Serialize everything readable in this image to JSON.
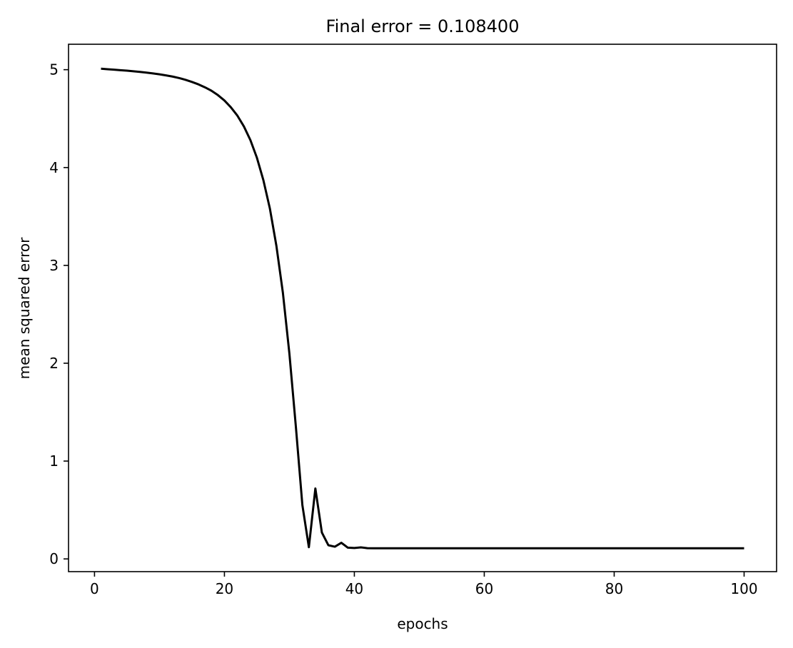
{
  "chart_data": {
    "type": "line",
    "title": "Final error = 0.108400",
    "xlabel": "epochs",
    "ylabel": "mean squared error",
    "xlim": [
      -4,
      105
    ],
    "ylim": [
      -0.13,
      5.26
    ],
    "xticks": [
      0,
      20,
      40,
      60,
      80,
      100
    ],
    "yticks": [
      0,
      1,
      2,
      3,
      4,
      5
    ],
    "grid": false,
    "line_color": "#000000",
    "series": [
      {
        "x": [
          1,
          2,
          3,
          4,
          5,
          6,
          7,
          8,
          9,
          10,
          11,
          12,
          13,
          14,
          15,
          16,
          17,
          18,
          19,
          20,
          21,
          22,
          23,
          24,
          25,
          26,
          27,
          28,
          29,
          30,
          31,
          32,
          33,
          34,
          35,
          36,
          37,
          38,
          39,
          40,
          41,
          42,
          43,
          44,
          45,
          46,
          47,
          48,
          49,
          50,
          51,
          52,
          53,
          54,
          55,
          56,
          57,
          58,
          59,
          60,
          61,
          62,
          63,
          64,
          65,
          66,
          67,
          68,
          69,
          70,
          71,
          72,
          73,
          74,
          75,
          76,
          77,
          78,
          79,
          80,
          81,
          82,
          83,
          84,
          85,
          86,
          87,
          88,
          89,
          90,
          91,
          92,
          93,
          94,
          95,
          96,
          97,
          98,
          99,
          100
        ],
        "values": [
          5.01,
          5.005,
          5.0,
          4.995,
          4.99,
          4.984,
          4.977,
          4.97,
          4.962,
          4.953,
          4.942,
          4.93,
          4.915,
          4.897,
          4.875,
          4.85,
          4.82,
          4.785,
          4.74,
          4.685,
          4.615,
          4.53,
          4.42,
          4.28,
          4.1,
          3.87,
          3.58,
          3.2,
          2.72,
          2.1,
          1.35,
          0.55,
          0.12,
          0.72,
          0.27,
          0.14,
          0.125,
          0.165,
          0.115,
          0.112,
          0.118,
          0.11,
          0.109,
          0.109,
          0.1088,
          0.1086,
          0.1085,
          0.1085,
          0.1084,
          0.1084,
          0.1084,
          0.1084,
          0.1084,
          0.1084,
          0.1084,
          0.1084,
          0.1084,
          0.1084,
          0.1084,
          0.1084,
          0.1084,
          0.1084,
          0.1084,
          0.1084,
          0.1084,
          0.1084,
          0.1084,
          0.1084,
          0.1084,
          0.1084,
          0.1084,
          0.1084,
          0.1084,
          0.1084,
          0.1084,
          0.1084,
          0.1084,
          0.1084,
          0.1084,
          0.1084,
          0.1084,
          0.1084,
          0.1084,
          0.1084,
          0.1084,
          0.1084,
          0.1084,
          0.1084,
          0.1084,
          0.1084,
          0.1084,
          0.1084,
          0.1084,
          0.1084,
          0.1084,
          0.1084,
          0.1084,
          0.1084,
          0.1084,
          0.1084
        ]
      }
    ]
  }
}
